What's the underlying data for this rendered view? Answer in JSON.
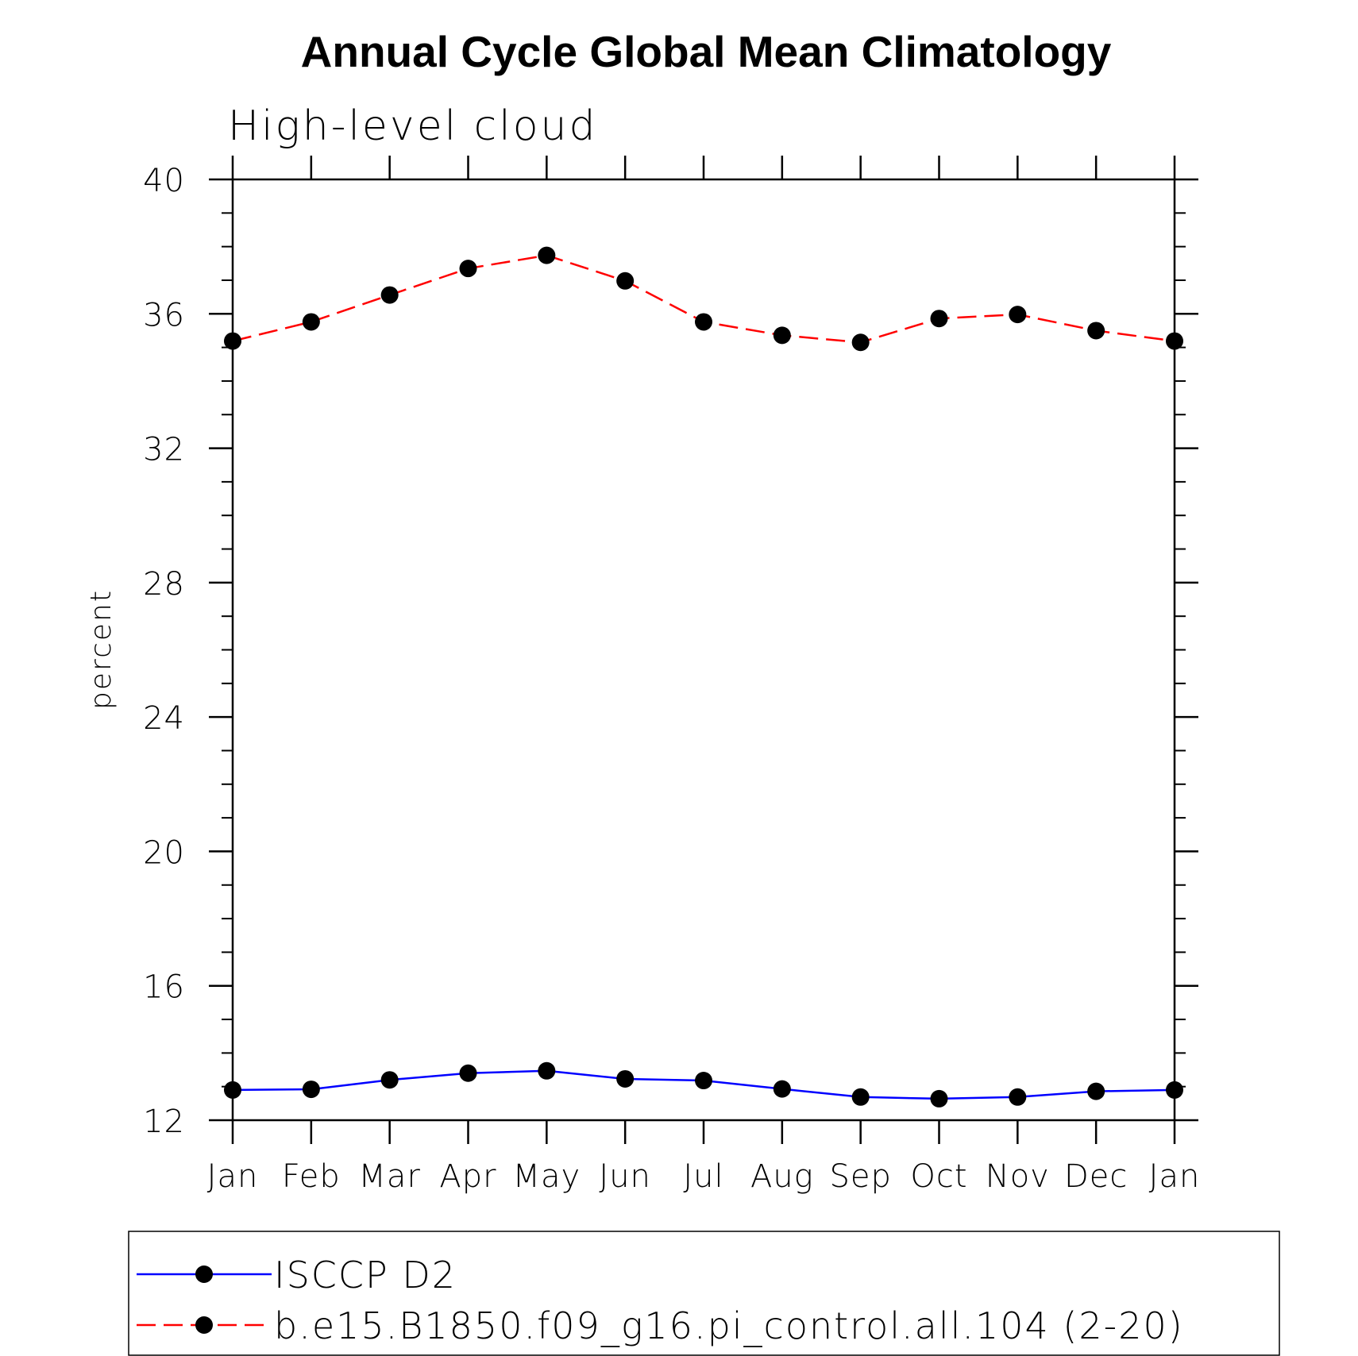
{
  "chart_data": {
    "type": "line",
    "title": "Annual Cycle Global Mean Climatology",
    "subtitle": "High-level cloud",
    "ylabel": "percent",
    "xlabel": "",
    "ylim": [
      12,
      40
    ],
    "yticks": [
      12,
      16,
      20,
      24,
      28,
      32,
      36,
      40
    ],
    "yminor_step": 1,
    "categories": [
      "Jan",
      "Feb",
      "Mar",
      "Apr",
      "May",
      "Jun",
      "Jul",
      "Aug",
      "Sep",
      "Oct",
      "Nov",
      "Dec",
      "Jan"
    ],
    "grid": false,
    "legend_position": "bottom",
    "series": [
      {
        "name": "ISCCP D2",
        "color": "#0000ff",
        "line_style": "solid",
        "marker": "filled-circle",
        "values": [
          12.9,
          12.92,
          13.2,
          13.4,
          13.47,
          13.23,
          13.18,
          12.93,
          12.69,
          12.64,
          12.69,
          12.86,
          12.9
        ]
      },
      {
        "name": "b.e15.B1850.f09_g16.pi_control.all.104 (2-20)",
        "color": "#ff0000",
        "line_style": "dashed",
        "marker": "filled-circle",
        "values": [
          35.19,
          35.76,
          36.56,
          37.35,
          37.74,
          36.98,
          35.76,
          35.36,
          35.15,
          35.86,
          35.98,
          35.5,
          35.19
        ]
      }
    ]
  }
}
